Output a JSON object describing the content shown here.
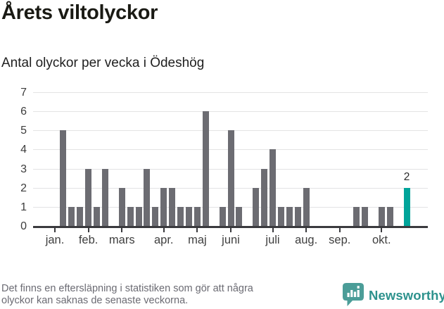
{
  "header": {
    "title": "Årets viltolyckor",
    "subtitle": "Antal olyckor per vecka i Ödeshög"
  },
  "chart_data": {
    "type": "bar",
    "title": "Årets viltolyckor",
    "subtitle": "Antal olyckor per vecka i Ödeshög",
    "xlabel": "",
    "ylabel": "",
    "ylim": [
      0,
      7
    ],
    "y_ticks": [
      0,
      1,
      2,
      3,
      4,
      5,
      6,
      7
    ],
    "grid": true,
    "legend_position": "none",
    "categories_unit": "vecka",
    "values": [
      0,
      5,
      1,
      1,
      3,
      1,
      3,
      0,
      2,
      1,
      1,
      3,
      1,
      2,
      2,
      1,
      1,
      1,
      6,
      0,
      1,
      5,
      1,
      0,
      2,
      3,
      4,
      1,
      1,
      1,
      2,
      0,
      0,
      0,
      0,
      0,
      1,
      1,
      0,
      1,
      1,
      0,
      2
    ],
    "month_ticks": [
      {
        "label": "jan.",
        "week": 1
      },
      {
        "label": "feb.",
        "week": 5
      },
      {
        "label": "mars",
        "week": 9
      },
      {
        "label": "apr.",
        "week": 14
      },
      {
        "label": "maj",
        "week": 18
      },
      {
        "label": "juni",
        "week": 22
      },
      {
        "label": "juli",
        "week": 27
      },
      {
        "label": "aug.",
        "week": 31
      },
      {
        "label": "sep.",
        "week": 35
      },
      {
        "label": "okt.",
        "week": 40
      }
    ],
    "highlight": {
      "week": 43,
      "value": 2,
      "label": "2"
    },
    "colors": {
      "bar": "#6c6c72",
      "highlight": "#00a49a",
      "grid": "#e3e3e4",
      "axis": "#3a3a3e",
      "tick_label": "#3f3f3f"
    }
  },
  "footer": {
    "note": [
      "Det finns en eftersläpning i statistiken som gör att några",
      "olyckor kan saknas de senaste veckorna."
    ],
    "brand": {
      "name": "Newsworthy",
      "wordmark_color": "#2d928d",
      "badge_color": "#4b9d98",
      "icon": "newsworthy-badge-icon"
    }
  }
}
